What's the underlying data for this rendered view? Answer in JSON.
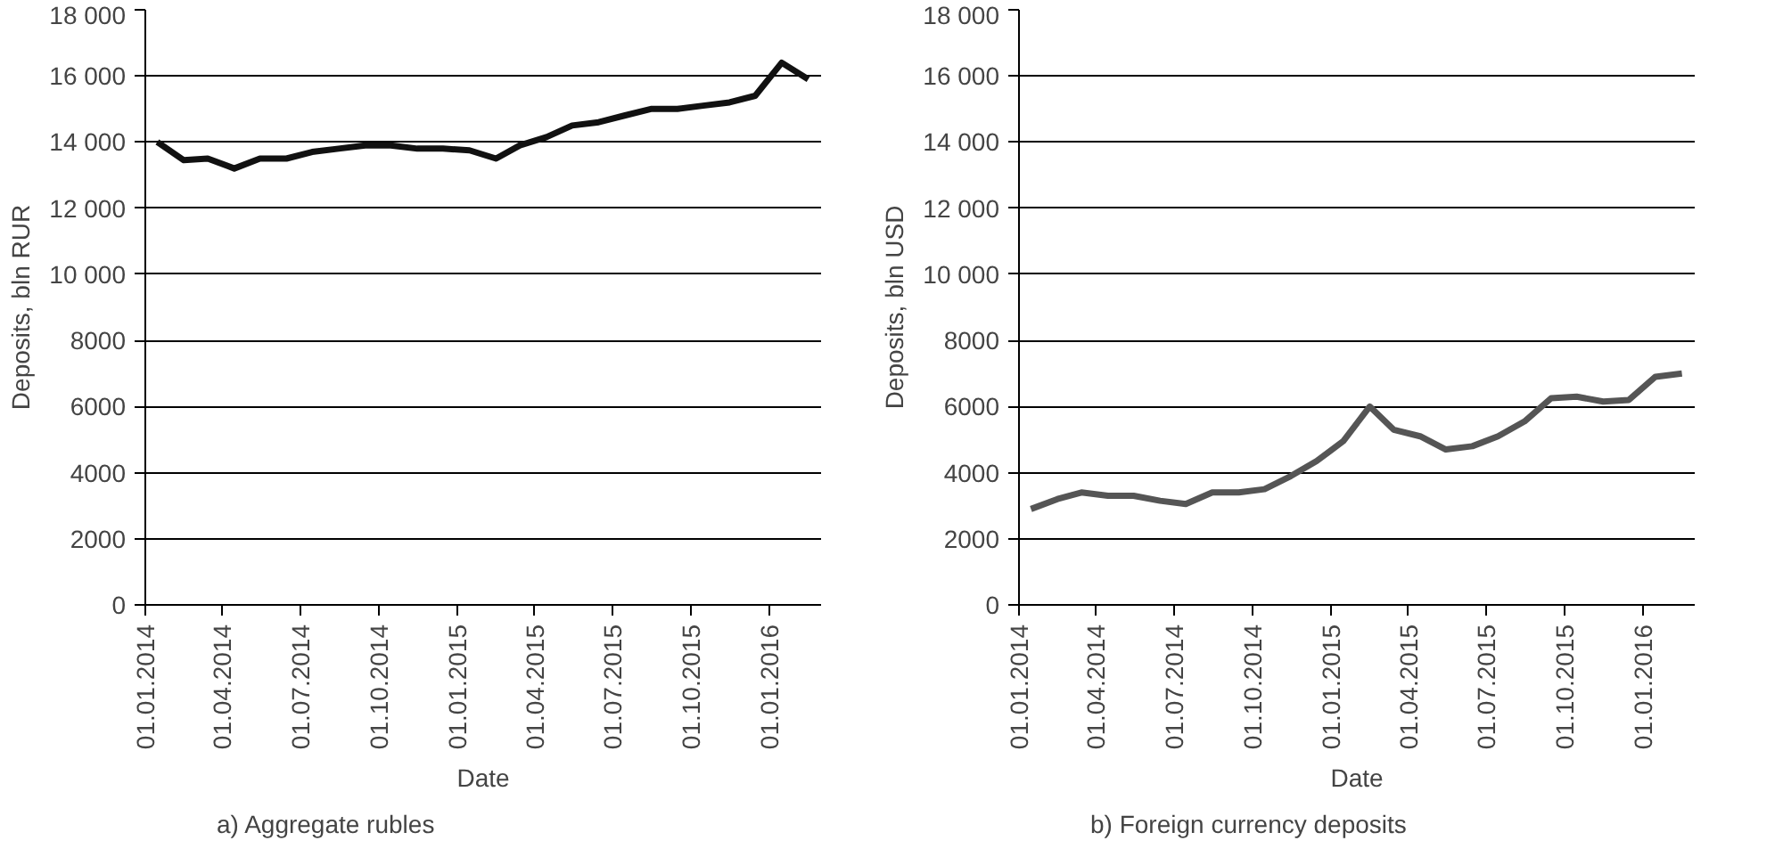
{
  "chart_data": [
    {
      "type": "line",
      "title": "a) Aggregate rubles",
      "xlabel": "Date",
      "ylabel": "Deposits, bln RUR",
      "x": [
        "2014-01-15",
        "2014-02-15",
        "2014-03-15",
        "2014-04-15",
        "2014-05-15",
        "2014-06-15",
        "2014-07-15",
        "2014-08-15",
        "2014-09-15",
        "2014-10-15",
        "2014-11-15",
        "2014-12-15",
        "2015-01-15",
        "2015-02-15",
        "2015-03-15",
        "2015-04-15",
        "2015-05-15",
        "2015-06-15",
        "2015-07-15",
        "2015-08-15",
        "2015-09-15",
        "2015-10-15",
        "2015-11-15",
        "2015-12-15",
        "2016-01-15",
        "2016-02-15"
      ],
      "series": [
        {
          "color": "#111111",
          "values": [
            14000,
            13450,
            13500,
            13200,
            13500,
            13500,
            13700,
            13800,
            13900,
            13900,
            13800,
            13800,
            13750,
            13500,
            13900,
            14150,
            14500,
            14600,
            14800,
            15000,
            15000,
            15100,
            15200,
            15400,
            16400,
            15900
          ]
        }
      ],
      "xlim": [
        "2014-01-01",
        "2016-03-01"
      ],
      "xticks": [
        {
          "value": "2014-01-01",
          "label": "01.01.2014"
        },
        {
          "value": "2014-04-01",
          "label": "01.04.2014"
        },
        {
          "value": "2014-07-01",
          "label": "01.07.2014"
        },
        {
          "value": "2014-10-01",
          "label": "01.10.2014"
        },
        {
          "value": "2015-01-01",
          "label": "01.01.2015"
        },
        {
          "value": "2015-04-01",
          "label": "01.04.2015"
        },
        {
          "value": "2015-07-01",
          "label": "01.07.2015"
        },
        {
          "value": "2015-10-01",
          "label": "01.10.2015"
        },
        {
          "value": "2016-01-01",
          "label": "01.01.2016"
        }
      ],
      "ylim": [
        0,
        18000
      ],
      "yticks": [
        0,
        2000,
        4000,
        6000,
        8000,
        {
          "value": 10000,
          "label": "10 000"
        },
        {
          "value": 12000,
          "label": "12 000"
        },
        {
          "value": 14000,
          "label": "14 000"
        },
        {
          "value": 16000,
          "label": "16 000"
        },
        {
          "value": 18000,
          "label": "18 000"
        }
      ],
      "grid": "y",
      "marker": "none",
      "line_style": "solid"
    },
    {
      "type": "line",
      "title": "b) Foreign currency deposits",
      "xlabel": "Date",
      "ylabel": "Deposits, bln USD",
      "x": [
        "2014-01-15",
        "2014-02-15",
        "2014-03-15",
        "2014-04-15",
        "2014-05-15",
        "2014-06-15",
        "2014-07-15",
        "2014-08-15",
        "2014-09-15",
        "2014-10-15",
        "2014-11-15",
        "2014-12-15",
        "2015-01-15",
        "2015-02-15",
        "2015-03-15",
        "2015-04-15",
        "2015-05-15",
        "2015-06-15",
        "2015-07-15",
        "2015-08-15",
        "2015-09-15",
        "2015-10-15",
        "2015-11-15",
        "2015-12-15",
        "2016-01-15",
        "2016-02-15"
      ],
      "series": [
        {
          "color": "#555555",
          "values": [
            2900,
            3200,
            3400,
            3300,
            3300,
            3150,
            3050,
            3400,
            3400,
            3500,
            3900,
            4350,
            4950,
            6000,
            5300,
            5100,
            4700,
            4800,
            5100,
            5550,
            6250,
            6300,
            6150,
            6200,
            6900,
            7000
          ]
        }
      ],
      "xlim": [
        "2014-01-01",
        "2016-03-01"
      ],
      "xticks": [
        {
          "value": "2014-01-01",
          "label": "01.01.2014"
        },
        {
          "value": "2014-04-01",
          "label": "01.04.2014"
        },
        {
          "value": "2014-07-01",
          "label": "01.07.2014"
        },
        {
          "value": "2014-10-01",
          "label": "01.10.2014"
        },
        {
          "value": "2015-01-01",
          "label": "01.01.2015"
        },
        {
          "value": "2015-04-01",
          "label": "01.04.2015"
        },
        {
          "value": "2015-07-01",
          "label": "01.07.2015"
        },
        {
          "value": "2015-10-01",
          "label": "01.10.2015"
        },
        {
          "value": "2016-01-01",
          "label": "01.01.2016"
        }
      ],
      "ylim": [
        0,
        18000
      ],
      "yticks": [
        0,
        2000,
        4000,
        6000,
        8000,
        {
          "value": 10000,
          "label": "10 000"
        },
        {
          "value": 12000,
          "label": "12 000"
        },
        {
          "value": 14000,
          "label": "14 000"
        },
        {
          "value": 16000,
          "label": "16 000"
        },
        {
          "value": 18000,
          "label": "18 000"
        }
      ],
      "grid": "y",
      "marker": "none",
      "line_style": "solid"
    }
  ]
}
